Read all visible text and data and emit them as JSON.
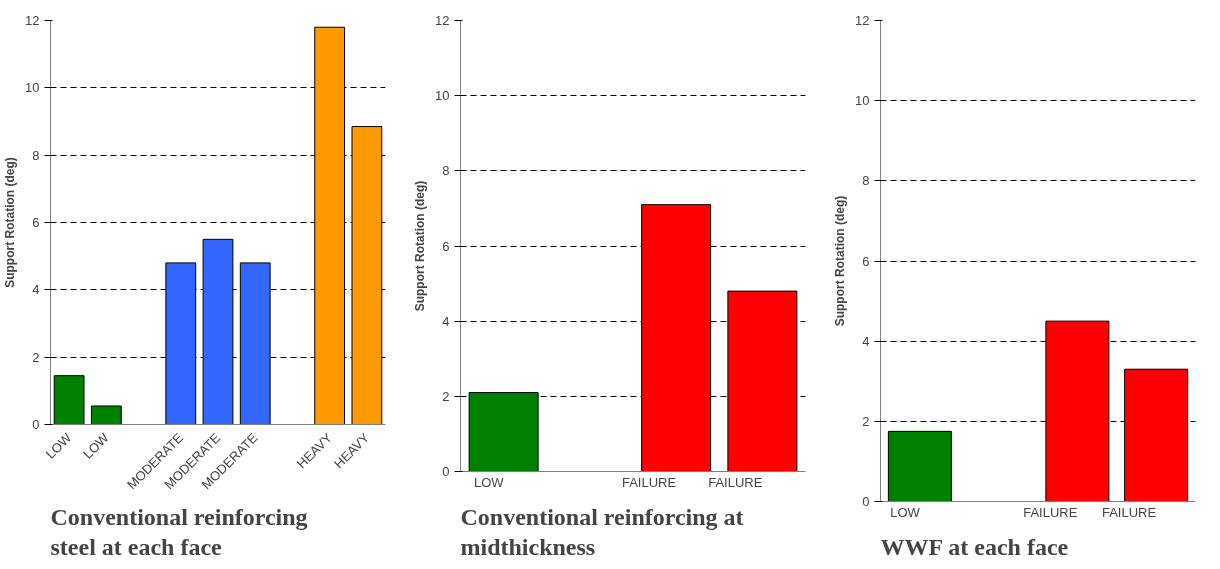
{
  "chart_data": [
    {
      "type": "bar",
      "title": "Conventional reinforcing steel at each face",
      "ylabel": "Support Rotation (deg)",
      "categories": [
        "LOW",
        "LOW",
        null,
        "MODERATE",
        "MODERATE",
        "MODERATE",
        null,
        "HEAVY",
        "HEAVY"
      ],
      "values": [
        1.45,
        0.55,
        null,
        4.8,
        5.5,
        4.8,
        null,
        11.8,
        8.85
      ],
      "colors": [
        "#008000",
        "#008000",
        "#ffffff",
        "#3366ff",
        "#3366ff",
        "#3366ff",
        "#ffffff",
        "#ff9900",
        "#ff9900"
      ],
      "ylim": [
        0,
        12
      ],
      "yticks": [
        0,
        2,
        4,
        6,
        8,
        10,
        12
      ],
      "grid": "y"
    },
    {
      "type": "bar",
      "title": "Conventional reinforcing at midthickness",
      "ylabel": "Support Rotation (deg)",
      "categories": [
        "LOW",
        null,
        "FAILURE",
        "FAILURE"
      ],
      "values": [
        2.1,
        null,
        7.1,
        4.8
      ],
      "colors": [
        "#008000",
        "#ffffff",
        "#ff0000",
        "#ff0000"
      ],
      "ylim": [
        0,
        12
      ],
      "yticks": [
        0,
        2,
        4,
        6,
        8,
        10,
        12
      ],
      "grid": "y"
    },
    {
      "type": "bar",
      "title": "WWF at each face",
      "ylabel": "Support Rotation (deg)",
      "categories": [
        "LOW",
        null,
        "FAILURE",
        "FAILURE"
      ],
      "values": [
        1.75,
        null,
        4.5,
        3.3
      ],
      "colors": [
        "#008000",
        "#ffffff",
        "#ff0000",
        "#ff0000"
      ],
      "ylim": [
        0,
        12
      ],
      "yticks": [
        0,
        2,
        4,
        6,
        8,
        10,
        12
      ],
      "grid": "y"
    }
  ]
}
